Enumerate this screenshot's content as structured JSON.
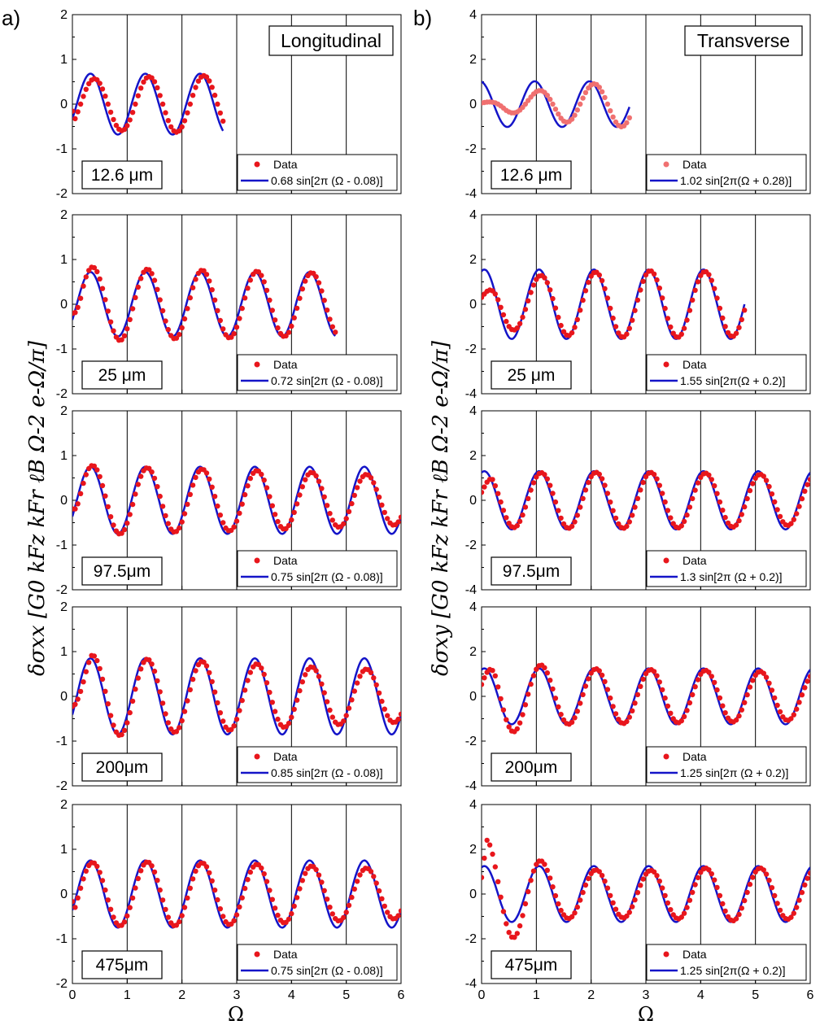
{
  "panel_labels": {
    "left": "a)",
    "right": "b)"
  },
  "x_axis_label": "Ω",
  "y_axis_labels": {
    "left": "δσxx [G0 kFz kFr ℓB Ω-2 e-Ω/π]",
    "right": "δσxy [G0 kFz kFr ℓB Ω-2 e-Ω/π]"
  },
  "chart_data": [
    {
      "type": "line",
      "column": "left",
      "row": 0,
      "title": "Longitudinal",
      "sample_label": "12.6 μm",
      "xlim": [
        0,
        6
      ],
      "ylim": [
        -2,
        2
      ],
      "xticks": [
        0,
        1,
        2,
        3,
        4,
        5,
        6
      ],
      "yticks": [
        -2,
        -1,
        0,
        1,
        2
      ],
      "fit": {
        "name": "0.68 sin[2π (Ω - 0.08)]",
        "amplitude": 0.68,
        "phase": -0.08,
        "x_range": [
          0,
          2.75
        ]
      },
      "data": {
        "name": "Data",
        "x_range": [
          0,
          2.75
        ],
        "amplitude_envelope": [
          0.55,
          0.62,
          0.65,
          0.6,
          0.55
        ],
        "phase": -0.15,
        "onset": 0.05
      }
    },
    {
      "type": "line",
      "column": "left",
      "row": 1,
      "sample_label": "25 μm",
      "xlim": [
        0,
        6
      ],
      "ylim": [
        -2,
        2
      ],
      "xticks": [
        0,
        1,
        2,
        3,
        4,
        5,
        6
      ],
      "yticks": [
        -2,
        -1,
        0,
        1,
        2
      ],
      "fit": {
        "name": "0.72 sin[2π (Ω - 0.08)]",
        "amplitude": 0.72,
        "phase": -0.08,
        "x_range": [
          0,
          4.8
        ]
      },
      "data": {
        "name": "Data",
        "x_range": [
          0,
          4.8
        ],
        "amplitude_envelope": [
          0.85,
          0.78,
          0.75,
          0.7,
          0.65
        ],
        "phase": -0.12,
        "onset": 0.2
      }
    },
    {
      "type": "line",
      "column": "left",
      "row": 2,
      "sample_label": "97.5μm",
      "xlim": [
        0,
        6
      ],
      "ylim": [
        -2,
        2
      ],
      "xticks": [
        0,
        1,
        2,
        3,
        4,
        5,
        6
      ],
      "yticks": [
        -2,
        -1,
        0,
        1,
        2
      ],
      "fit": {
        "name": "0.75 sin[2π (Ω - 0.08)]",
        "amplitude": 0.75,
        "phase": -0.08,
        "x_range": [
          0,
          6
        ]
      },
      "data": {
        "name": "Data",
        "x_range": [
          0,
          6
        ],
        "amplitude_envelope": [
          0.8,
          0.72,
          0.68,
          0.62,
          0.55
        ],
        "phase": -0.12,
        "onset": 0.15
      }
    },
    {
      "type": "line",
      "column": "left",
      "row": 3,
      "sample_label": "200μm",
      "xlim": [
        0,
        6
      ],
      "ylim": [
        -2,
        2
      ],
      "xticks": [
        0,
        1,
        2,
        3,
        4,
        5,
        6
      ],
      "yticks": [
        -2,
        -1,
        0,
        1,
        2
      ],
      "fit": {
        "name": "0.85 sin[2π (Ω - 0.08)]",
        "amplitude": 0.85,
        "phase": -0.08,
        "x_range": [
          0,
          6
        ]
      },
      "data": {
        "name": "Data",
        "x_range": [
          0,
          6
        ],
        "amplitude_envelope": [
          0.95,
          0.82,
          0.75,
          0.65,
          0.58
        ],
        "phase": -0.12,
        "onset": 0.35
      }
    },
    {
      "type": "line",
      "column": "left",
      "row": 4,
      "sample_label": "475μm",
      "xlim": [
        0,
        6
      ],
      "ylim": [
        -2,
        2
      ],
      "xticks": [
        0,
        1,
        2,
        3,
        4,
        5,
        6
      ],
      "yticks": [
        -2,
        -1,
        0,
        1,
        2
      ],
      "fit": {
        "name": "0.75 sin[2π (Ω - 0.08)]",
        "amplitude": 0.75,
        "phase": -0.08,
        "x_range": [
          0,
          6
        ]
      },
      "data": {
        "name": "Data",
        "x_range": [
          0,
          6
        ],
        "amplitude_envelope": [
          0.7,
          0.72,
          0.68,
          0.62,
          0.55
        ],
        "phase": -0.12,
        "onset": 0.05
      }
    },
    {
      "type": "line",
      "column": "right",
      "row": 0,
      "title": "Transverse",
      "sample_label": "12.6 μm",
      "xlim": [
        0,
        6
      ],
      "ylim": [
        -4,
        4
      ],
      "xticks": [
        0,
        1,
        2,
        3,
        4,
        5,
        6
      ],
      "yticks": [
        -4,
        -2,
        0,
        2,
        4
      ],
      "fit": {
        "name": "1.02 sin[2π(Ω + 0.28)]",
        "amplitude": 1.02,
        "phase": 0.28,
        "x_range": [
          0,
          2.7
        ]
      },
      "data": {
        "name": "Data",
        "x_range": [
          0,
          2.7
        ],
        "amplitude_envelope": [
          0.15,
          0.8,
          1.1,
          1.15,
          0.9
        ],
        "phase": 0.2,
        "onset": 0.45
      }
    },
    {
      "type": "line",
      "column": "right",
      "row": 1,
      "sample_label": "25 μm",
      "xlim": [
        0,
        6
      ],
      "ylim": [
        -4,
        4
      ],
      "xticks": [
        0,
        1,
        2,
        3,
        4,
        5,
        6
      ],
      "yticks": [
        -4,
        -2,
        0,
        2,
        4
      ],
      "fit": {
        "name": "1.55 sin[2π(Ω + 0.2)]",
        "amplitude": 1.55,
        "phase": 0.2,
        "x_range": [
          0,
          4.8
        ]
      },
      "data": {
        "name": "Data",
        "x_range": [
          0,
          4.8
        ],
        "amplitude_envelope": [
          1.0,
          1.4,
          1.5,
          1.45,
          1.3
        ],
        "phase": 0.17,
        "onset": 0.3
      }
    },
    {
      "type": "line",
      "column": "right",
      "row": 2,
      "sample_label": "97.5μm",
      "xlim": [
        0,
        6
      ],
      "ylim": [
        -4,
        4
      ],
      "xticks": [
        0,
        1,
        2,
        3,
        4,
        5,
        6
      ],
      "yticks": [
        -4,
        -2,
        0,
        2,
        4
      ],
      "fit": {
        "name": "1.3 sin[2π (Ω + 0.2)]",
        "amplitude": 1.3,
        "phase": 0.2,
        "x_range": [
          0,
          6
        ]
      },
      "data": {
        "name": "Data",
        "x_range": [
          0,
          6
        ],
        "amplitude_envelope": [
          1.2,
          1.25,
          1.25,
          1.2,
          1.1
        ],
        "phase": 0.16,
        "onset": 0.2
      }
    },
    {
      "type": "line",
      "column": "right",
      "row": 3,
      "sample_label": "200μm",
      "xlim": [
        0,
        6
      ],
      "ylim": [
        -4,
        4
      ],
      "xticks": [
        0,
        1,
        2,
        3,
        4,
        5,
        6
      ],
      "yticks": [
        -4,
        -2,
        0,
        2,
        4
      ],
      "fit": {
        "name": "1.25 sin[2π (Ω + 0.2)]",
        "amplitude": 1.25,
        "phase": 0.2,
        "x_range": [
          0,
          6
        ]
      },
      "data": {
        "name": "Data",
        "x_range": [
          0,
          6
        ],
        "amplitude_envelope": [
          1.8,
          1.25,
          1.2,
          1.15,
          1.05
        ],
        "phase": 0.16,
        "onset": 0.25
      }
    },
    {
      "type": "line",
      "column": "right",
      "row": 4,
      "sample_label": "475μm",
      "xlim": [
        0,
        6
      ],
      "ylim": [
        -4,
        4
      ],
      "xticks": [
        0,
        1,
        2,
        3,
        4,
        5,
        6
      ],
      "yticks": [
        -4,
        -2,
        0,
        2,
        4
      ],
      "fit": {
        "name": "1.25 sin[2π(Ω + 0.2)]",
        "amplitude": 1.25,
        "phase": 0.2,
        "x_range": [
          0,
          6
        ]
      },
      "data": {
        "name": "Data",
        "x_range": [
          0,
          6
        ],
        "amplitude_envelope": [
          2.5,
          1.1,
          1.05,
          1.2,
          1.1
        ],
        "phase": 0.16,
        "onset": 0.1
      }
    }
  ],
  "colors": {
    "fit": "#1414c8",
    "data": "#e8161c",
    "data_faded": "#f07070",
    "gridline": "#000000"
  }
}
